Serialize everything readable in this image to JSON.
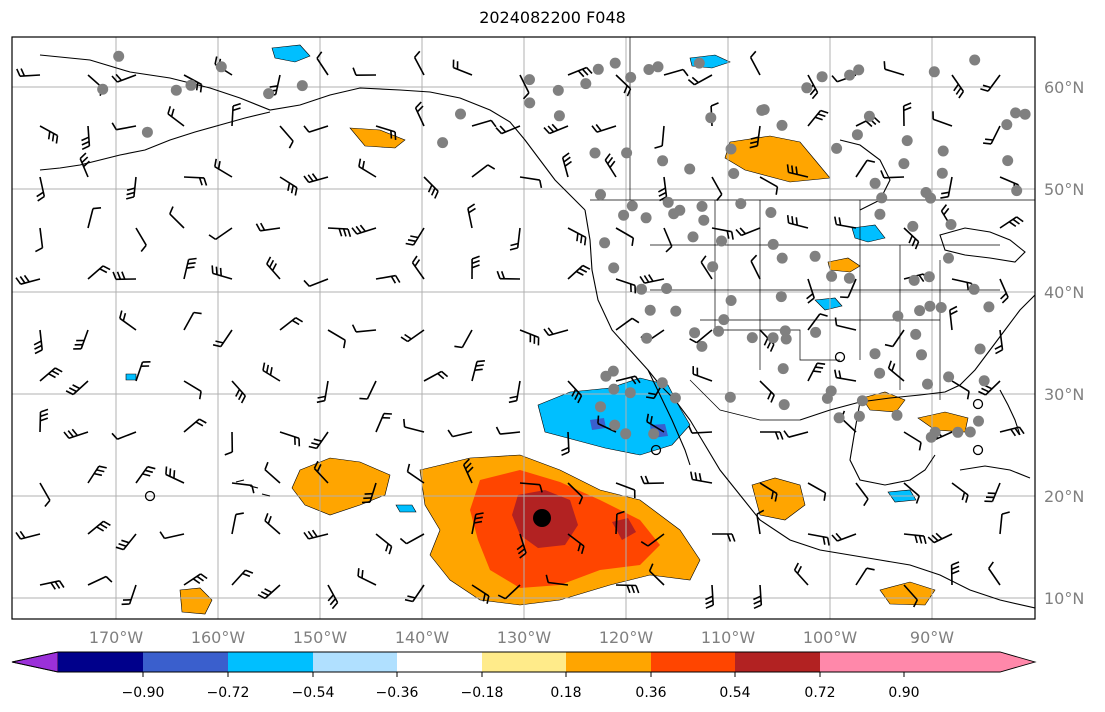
{
  "title": "2024082200 F048",
  "axes": {
    "lon_ticks": [
      "170°W",
      "160°W",
      "150°W",
      "140°W",
      "130°W",
      "120°W",
      "110°W",
      "100°W",
      "90°W"
    ],
    "lat_ticks": [
      "60°N",
      "50°N",
      "40°N",
      "30°N",
      "20°N",
      "10°N"
    ]
  },
  "colorbar": {
    "labels": [
      "−0.90",
      "−0.72",
      "−0.54",
      "−0.36",
      "−0.18",
      "0.18",
      "0.36",
      "0.54",
      "0.72",
      "0.90"
    ],
    "colors": [
      "#9b30d9",
      "#00008b",
      "#3a5fcd",
      "#00bfff",
      "#b0e0ff",
      "#ffffff",
      "#ffeb8a",
      "#ffa500",
      "#ff4500",
      "#b22222",
      "#ff88aa"
    ]
  },
  "colors": {
    "grid": "#b0b0b0",
    "coast": "#000000",
    "station": "#808080",
    "storm_center": "#000000"
  }
}
